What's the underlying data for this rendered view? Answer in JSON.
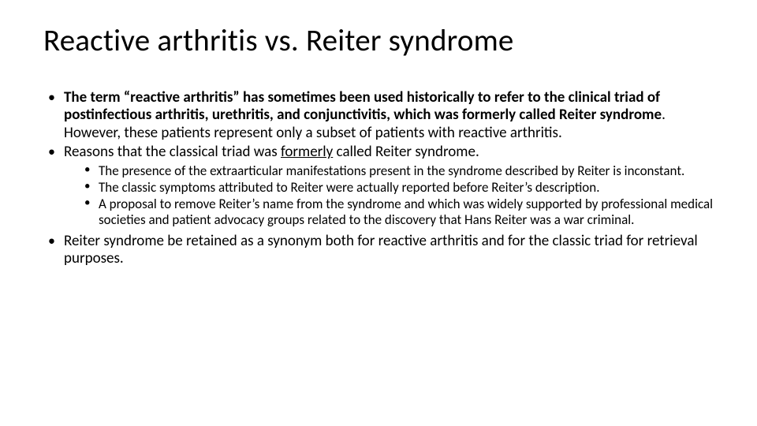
{
  "slide": {
    "title": "Reactive arthritis vs. Reiter syndrome",
    "title_fontsize": 39,
    "title_color": "#000000",
    "background_color": "#ffffff",
    "body_fontsize_level1": 19,
    "body_fontsize_level2": 17,
    "text_color": "#000000",
    "line_height": 1.18,
    "bullets": [
      {
        "type": "level1",
        "segments": [
          {
            "text": "The term “reactive arthritis” has sometimes been used historically to refer to the clinical triad of postinfectious arthritis, urethritis, and conjunctivitis, which was formerly called Reiter syndrome",
            "bold": true
          },
          {
            "text": ". However, these patients represent only a subset of patients with reactive arthritis.",
            "bold": false
          }
        ]
      },
      {
        "type": "level1",
        "segments": [
          {
            "text": "Reasons that the classical triad was ",
            "bold": false
          },
          {
            "text": "formerly",
            "bold": false,
            "underline": true
          },
          {
            "text": " called Reiter syndrome.",
            "bold": false
          }
        ],
        "children": [
          {
            "type": "level2",
            "segments": [
              {
                "text": "The presence of the extraarticular manifestations present in the syndrome described by Reiter is inconstant."
              }
            ]
          },
          {
            "type": "level2",
            "segments": [
              {
                "text": "The classic symptoms attributed to Reiter were actually reported before Reiter’s description."
              }
            ]
          },
          {
            "type": "level2",
            "segments": [
              {
                "text": "A proposal to remove Reiter’s name from the syndrome and which was widely supported by professional medical societies and patient advocacy groups related to the discovery that Hans Reiter was a war criminal."
              }
            ]
          }
        ]
      },
      {
        "type": "level1",
        "segments": [
          {
            "text": "Reiter syndrome be retained as a synonym both for reactive arthritis and for the classic triad for retrieval purposes."
          }
        ]
      }
    ]
  }
}
